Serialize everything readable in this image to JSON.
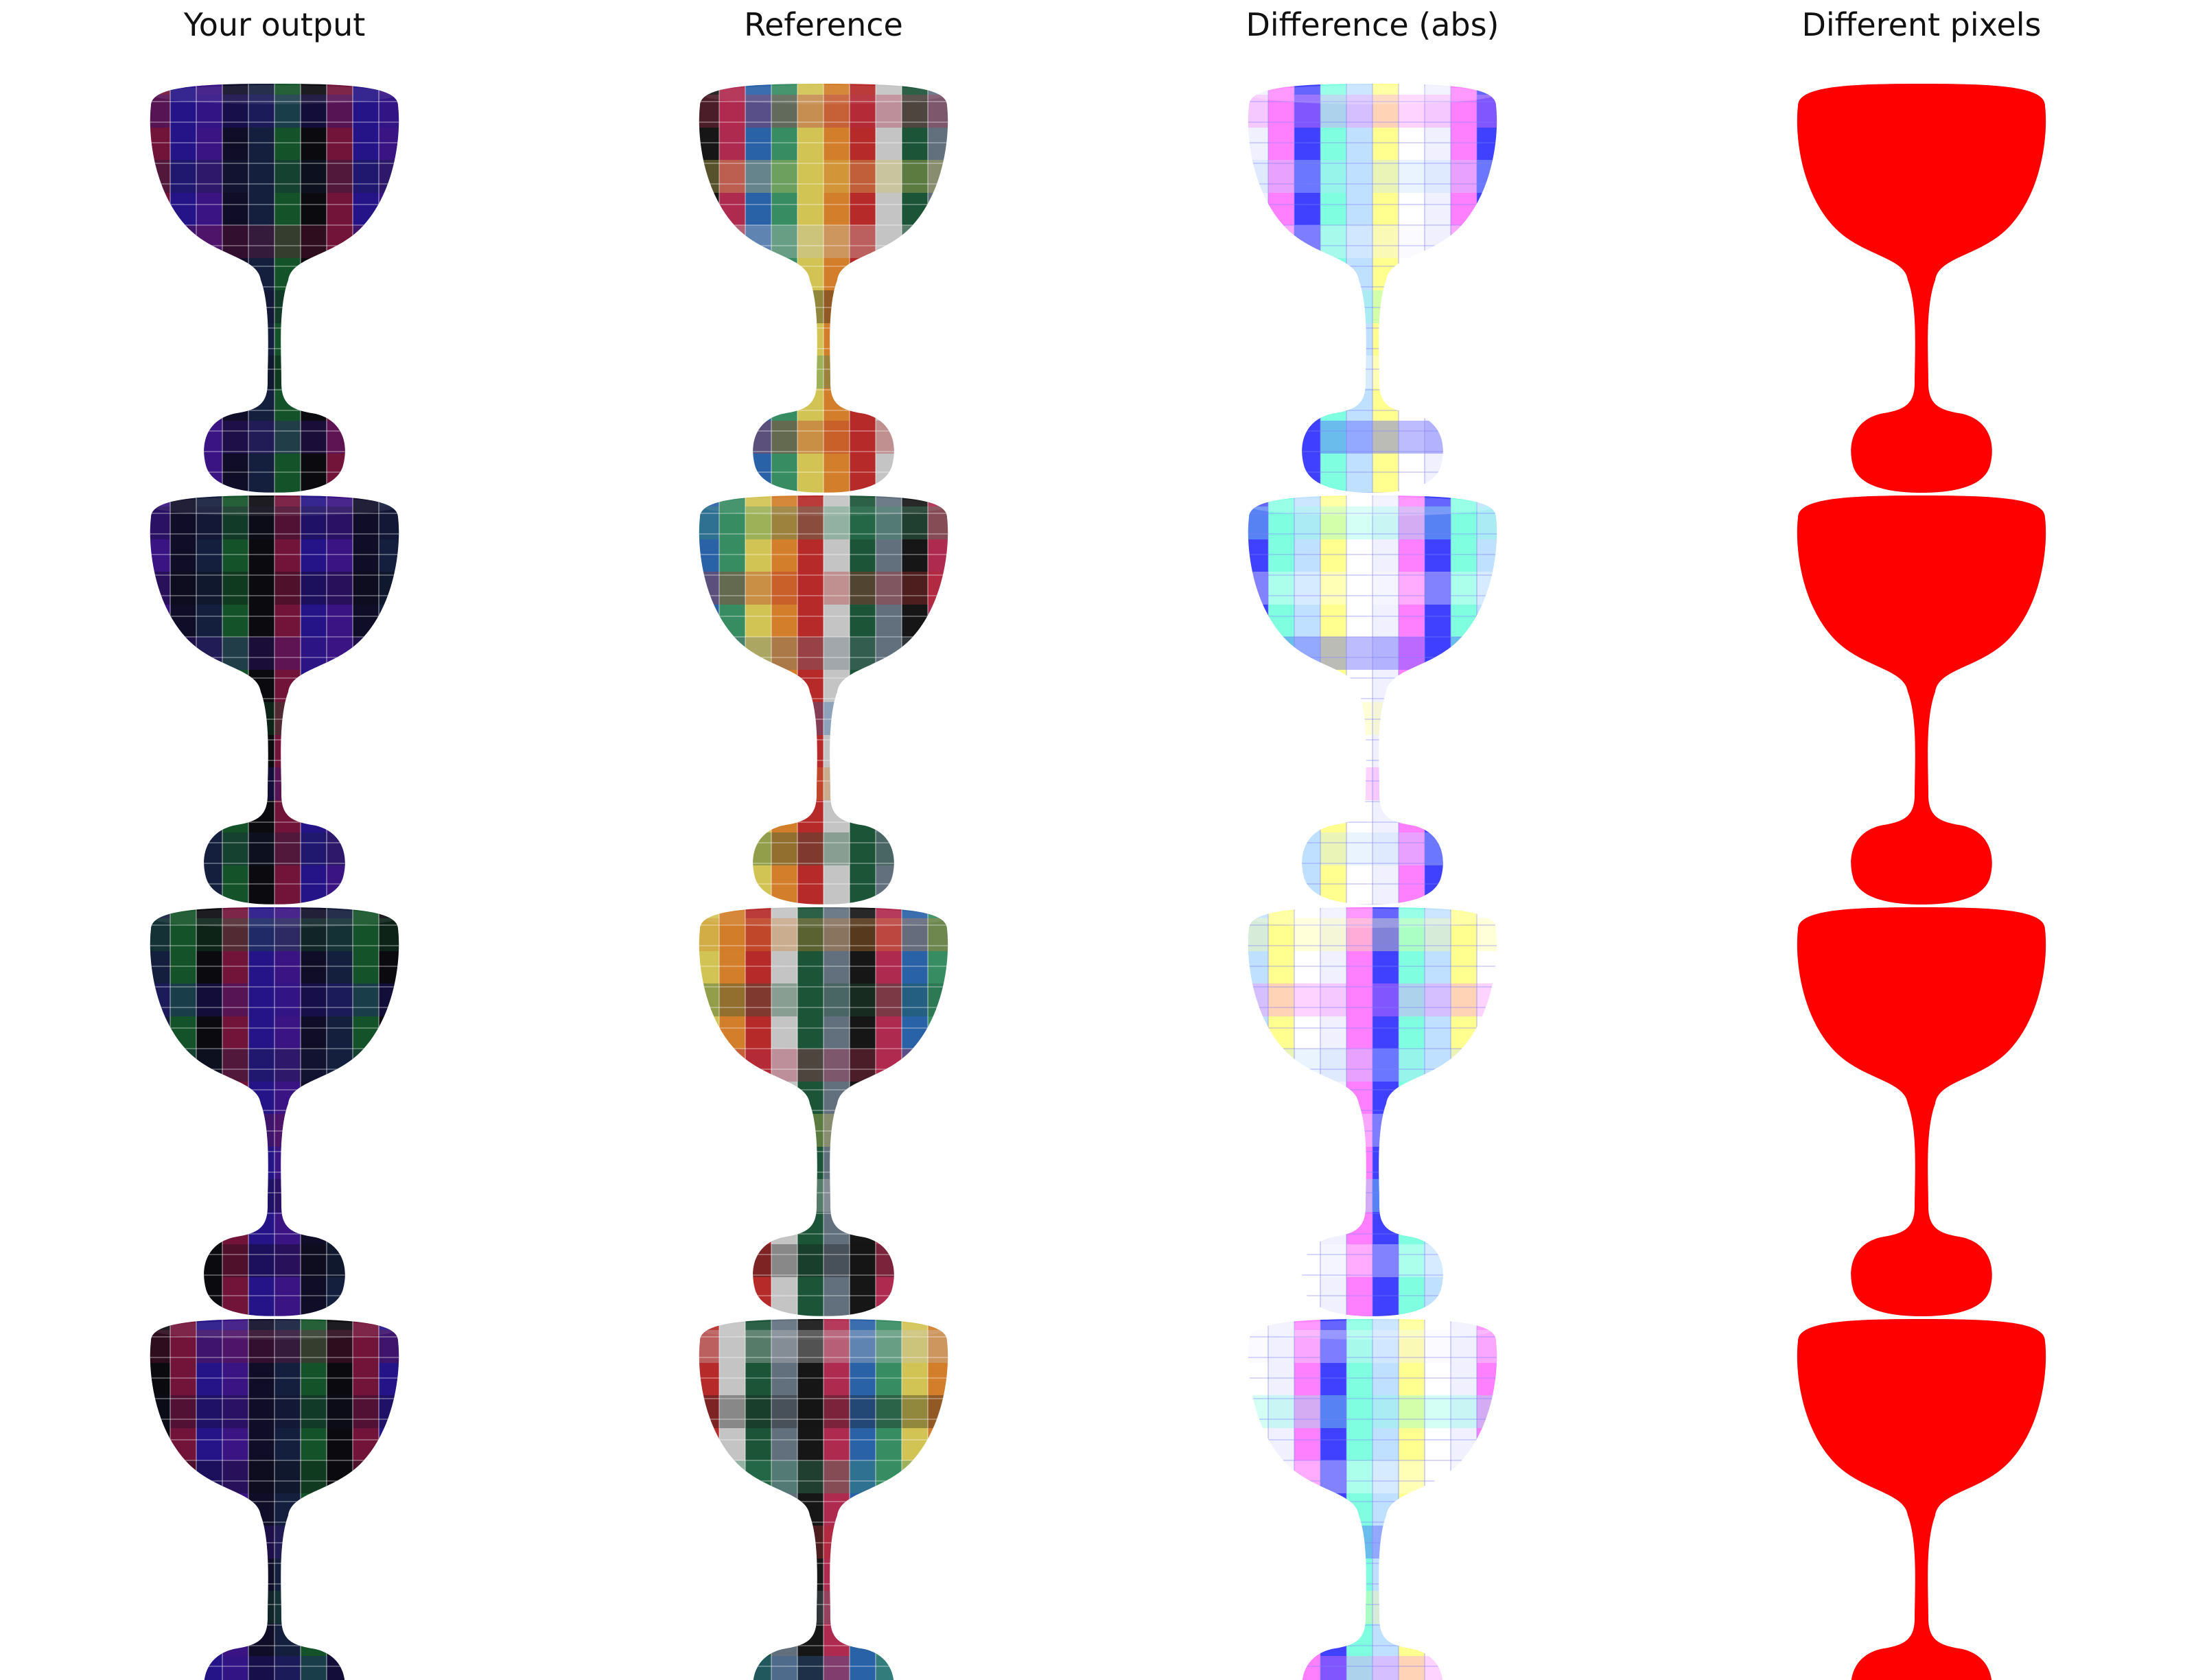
{
  "columns": [
    {
      "title": "Your output",
      "kind": "output"
    },
    {
      "title": "Reference",
      "kind": "reference"
    },
    {
      "title": "Difference (abs)",
      "kind": "difference"
    },
    {
      "title": "Different pixels",
      "kind": "mask"
    }
  ],
  "rows": 4,
  "colors": {
    "background": "#ffffff",
    "mask": "#ff0000",
    "output_palette": [
      "#b0205a",
      "#3a20d0",
      "#5a20c8",
      "#1a1440",
      "#203060",
      "#208040",
      "#101018"
    ],
    "reference_palette": [
      "#1a1a1a",
      "#c8305a",
      "#3070c0",
      "#40a070",
      "#f0e060",
      "#f09030",
      "#d03030",
      "#e0e0e0",
      "#206040",
      "#708090"
    ],
    "difference_palette": [
      "#f0f0ff",
      "#ff80ff",
      "#4040ff",
      "#80ffe0",
      "#c0e0ff",
      "#ffff90",
      "#ffffff"
    ]
  }
}
